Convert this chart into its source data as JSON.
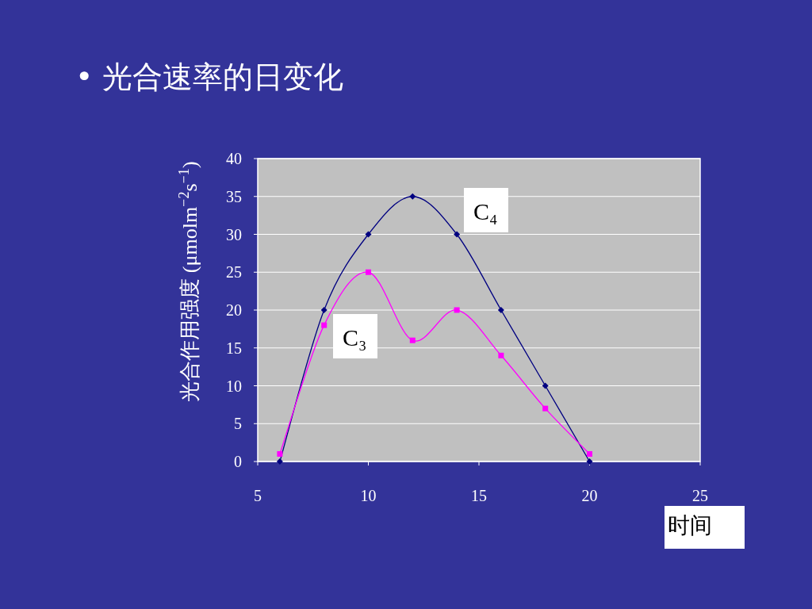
{
  "chart_data": {
    "type": "line",
    "title": "• 光合速率的日变化",
    "xlabel": "时间",
    "ylabel": "光合作用强度 (μmolm$^{−2}$s$^{−1}$)",
    "xlim": [
      5,
      25
    ],
    "xticks": [
      5,
      10,
      15,
      20,
      25
    ],
    "ylim": [
      0,
      40
    ],
    "yticks": [
      0,
      5,
      10,
      15,
      20,
      25,
      30,
      35,
      40
    ],
    "grid": "y",
    "series": [
      {
        "name": "C₄",
        "color": "#000080",
        "marker": "diamond",
        "x": [
          6,
          8,
          10,
          12,
          14,
          16,
          18,
          20
        ],
        "values": [
          0,
          20,
          30,
          35,
          30,
          20,
          10,
          0
        ]
      },
      {
        "name": "C₃",
        "color": "#ff00ff",
        "marker": "square",
        "x": [
          6,
          8,
          10,
          12,
          14,
          16,
          18,
          20
        ],
        "values": [
          1,
          18,
          25,
          16,
          20,
          14,
          7,
          1
        ]
      }
    ]
  }
}
